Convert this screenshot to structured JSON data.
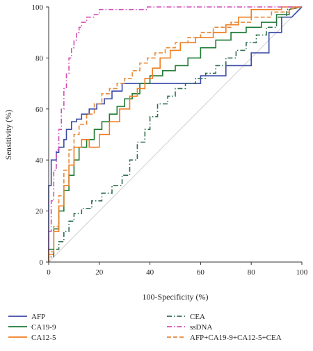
{
  "chart_data": {
    "type": "line",
    "title": "",
    "xlabel": "100-Specificity (%)",
    "ylabel": "Sensitivity (%)",
    "xlim": [
      0,
      100
    ],
    "ylim": [
      0,
      100
    ],
    "x_ticks": [
      0,
      20,
      40,
      60,
      80,
      100
    ],
    "y_ticks": [
      0,
      20,
      40,
      60,
      80,
      100
    ],
    "x_tick_labels": [
      "0",
      "20",
      "40",
      "60",
      "80",
      "100"
    ],
    "y_tick_labels": [
      "0",
      "20",
      "40",
      "60",
      "80",
      "100"
    ],
    "grid": false,
    "legend_position": "bottom",
    "reference_line": {
      "from": [
        0,
        0
      ],
      "to": [
        100,
        100
      ],
      "color": "#d0d0d0"
    },
    "series": [
      {
        "name": "AFP",
        "color": "#3b4aa8",
        "dash": "solid",
        "points": [
          [
            0,
            0
          ],
          [
            0,
            30
          ],
          [
            1,
            30
          ],
          [
            1,
            40
          ],
          [
            3,
            40
          ],
          [
            3,
            43
          ],
          [
            4,
            43
          ],
          [
            4,
            45
          ],
          [
            6,
            45
          ],
          [
            6,
            48
          ],
          [
            7,
            48
          ],
          [
            7,
            52
          ],
          [
            9,
            52
          ],
          [
            9,
            55
          ],
          [
            11,
            55
          ],
          [
            11,
            56
          ],
          [
            13,
            56
          ],
          [
            13,
            58
          ],
          [
            16,
            58
          ],
          [
            16,
            60
          ],
          [
            19,
            60
          ],
          [
            19,
            62
          ],
          [
            22,
            62
          ],
          [
            22,
            64
          ],
          [
            25,
            64
          ],
          [
            25,
            67
          ],
          [
            29,
            67
          ],
          [
            29,
            70
          ],
          [
            40,
            70
          ],
          [
            40,
            70
          ],
          [
            60,
            70
          ],
          [
            60,
            73
          ],
          [
            70,
            73
          ],
          [
            70,
            77
          ],
          [
            80,
            77
          ],
          [
            80,
            82
          ],
          [
            87,
            82
          ],
          [
            87,
            90
          ],
          [
            92,
            90
          ],
          [
            92,
            96
          ],
          [
            96,
            96
          ],
          [
            100,
            100
          ]
        ]
      },
      {
        "name": "CA19-9",
        "color": "#1e7a34",
        "dash": "solid",
        "points": [
          [
            0,
            0
          ],
          [
            0,
            5
          ],
          [
            2,
            5
          ],
          [
            2,
            13
          ],
          [
            4,
            13
          ],
          [
            4,
            20
          ],
          [
            6,
            20
          ],
          [
            6,
            28
          ],
          [
            8,
            28
          ],
          [
            8,
            34
          ],
          [
            10,
            34
          ],
          [
            10,
            40
          ],
          [
            12,
            40
          ],
          [
            12,
            45
          ],
          [
            15,
            45
          ],
          [
            15,
            48
          ],
          [
            18,
            48
          ],
          [
            18,
            52
          ],
          [
            21,
            52
          ],
          [
            21,
            55
          ],
          [
            24,
            55
          ],
          [
            24,
            58
          ],
          [
            27,
            58
          ],
          [
            27,
            61
          ],
          [
            30,
            61
          ],
          [
            30,
            64
          ],
          [
            33,
            64
          ],
          [
            33,
            66
          ],
          [
            36,
            66
          ],
          [
            36,
            70
          ],
          [
            40,
            70
          ],
          [
            40,
            73
          ],
          [
            45,
            73
          ],
          [
            45,
            75
          ],
          [
            50,
            75
          ],
          [
            50,
            77
          ],
          [
            55,
            77
          ],
          [
            55,
            80
          ],
          [
            60,
            80
          ],
          [
            60,
            84
          ],
          [
            66,
            84
          ],
          [
            66,
            87
          ],
          [
            72,
            87
          ],
          [
            72,
            90
          ],
          [
            78,
            90
          ],
          [
            78,
            92
          ],
          [
            84,
            92
          ],
          [
            84,
            94
          ],
          [
            90,
            94
          ],
          [
            90,
            97
          ],
          [
            95,
            97
          ],
          [
            95,
            99
          ],
          [
            100,
            100
          ]
        ]
      },
      {
        "name": "CA12-5",
        "color": "#f07d1f",
        "dash": "solid",
        "points": [
          [
            0,
            0
          ],
          [
            0,
            3
          ],
          [
            2,
            3
          ],
          [
            2,
            12
          ],
          [
            4,
            12
          ],
          [
            4,
            22
          ],
          [
            6,
            22
          ],
          [
            6,
            30
          ],
          [
            8,
            30
          ],
          [
            8,
            38
          ],
          [
            10,
            38
          ],
          [
            10,
            45
          ],
          [
            13,
            45
          ],
          [
            13,
            48
          ],
          [
            16,
            48
          ],
          [
            16,
            45
          ],
          [
            20,
            45
          ],
          [
            20,
            50
          ],
          [
            24,
            50
          ],
          [
            24,
            55
          ],
          [
            28,
            55
          ],
          [
            28,
            60
          ],
          [
            32,
            60
          ],
          [
            32,
            65
          ],
          [
            35,
            65
          ],
          [
            35,
            68
          ],
          [
            38,
            68
          ],
          [
            38,
            72
          ],
          [
            41,
            72
          ],
          [
            41,
            76
          ],
          [
            44,
            76
          ],
          [
            44,
            80
          ],
          [
            48,
            80
          ],
          [
            48,
            83
          ],
          [
            52,
            83
          ],
          [
            52,
            86
          ],
          [
            58,
            86
          ],
          [
            58,
            88
          ],
          [
            65,
            88
          ],
          [
            65,
            90
          ],
          [
            70,
            90
          ],
          [
            70,
            93
          ],
          [
            75,
            93
          ],
          [
            75,
            96
          ],
          [
            80,
            96
          ],
          [
            80,
            99
          ],
          [
            92,
            99
          ],
          [
            92,
            100
          ],
          [
            100,
            100
          ]
        ]
      },
      {
        "name": "CEA",
        "color": "#2f6e4f",
        "dash": "dashdot",
        "points": [
          [
            0,
            0
          ],
          [
            0,
            2
          ],
          [
            2,
            2
          ],
          [
            2,
            5
          ],
          [
            4,
            5
          ],
          [
            4,
            8
          ],
          [
            6,
            8
          ],
          [
            6,
            12
          ],
          [
            8,
            12
          ],
          [
            8,
            16
          ],
          [
            10,
            16
          ],
          [
            10,
            19
          ],
          [
            13,
            19
          ],
          [
            13,
            21
          ],
          [
            17,
            21
          ],
          [
            17,
            24
          ],
          [
            21,
            24
          ],
          [
            21,
            27
          ],
          [
            25,
            27
          ],
          [
            25,
            30
          ],
          [
            29,
            30
          ],
          [
            29,
            34
          ],
          [
            32,
            34
          ],
          [
            32,
            40
          ],
          [
            35,
            40
          ],
          [
            35,
            47
          ],
          [
            38,
            47
          ],
          [
            38,
            52
          ],
          [
            40,
            52
          ],
          [
            40,
            57
          ],
          [
            43,
            57
          ],
          [
            43,
            62
          ],
          [
            47,
            62
          ],
          [
            47,
            65
          ],
          [
            50,
            65
          ],
          [
            50,
            68
          ],
          [
            54,
            68
          ],
          [
            54,
            70
          ],
          [
            58,
            70
          ],
          [
            58,
            72
          ],
          [
            62,
            72
          ],
          [
            62,
            74
          ],
          [
            66,
            74
          ],
          [
            66,
            77
          ],
          [
            70,
            77
          ],
          [
            70,
            80
          ],
          [
            74,
            80
          ],
          [
            74,
            83
          ],
          [
            78,
            83
          ],
          [
            78,
            86
          ],
          [
            82,
            86
          ],
          [
            82,
            89
          ],
          [
            86,
            89
          ],
          [
            86,
            92
          ],
          [
            90,
            92
          ],
          [
            90,
            96
          ],
          [
            94,
            96
          ],
          [
            94,
            99
          ],
          [
            100,
            100
          ]
        ]
      },
      {
        "name": "ssDNA",
        "color": "#d24fb5",
        "dash": "dashdot",
        "points": [
          [
            0,
            0
          ],
          [
            0,
            12
          ],
          [
            1,
            12
          ],
          [
            1,
            24
          ],
          [
            2,
            24
          ],
          [
            2,
            36
          ],
          [
            3,
            36
          ],
          [
            3,
            44
          ],
          [
            4,
            44
          ],
          [
            4,
            52
          ],
          [
            5,
            52
          ],
          [
            5,
            60
          ],
          [
            6,
            60
          ],
          [
            6,
            68
          ],
          [
            7,
            68
          ],
          [
            7,
            74
          ],
          [
            8,
            74
          ],
          [
            8,
            80
          ],
          [
            9,
            80
          ],
          [
            9,
            84
          ],
          [
            10,
            84
          ],
          [
            10,
            87
          ],
          [
            11,
            87
          ],
          [
            11,
            90
          ],
          [
            12,
            90
          ],
          [
            12,
            92
          ],
          [
            13,
            92
          ],
          [
            13,
            94
          ],
          [
            15,
            94
          ],
          [
            15,
            96
          ],
          [
            18,
            96
          ],
          [
            18,
            97
          ],
          [
            20,
            97
          ],
          [
            20,
            99
          ],
          [
            39,
            99
          ],
          [
            39,
            100
          ],
          [
            100,
            100
          ]
        ]
      },
      {
        "name": "AFP+CA19-9+CA12-5+CEA",
        "color": "#e58a3a",
        "dash": "dashed",
        "points": [
          [
            0,
            0
          ],
          [
            0,
            4
          ],
          [
            2,
            4
          ],
          [
            2,
            14
          ],
          [
            4,
            14
          ],
          [
            4,
            26
          ],
          [
            6,
            26
          ],
          [
            6,
            36
          ],
          [
            8,
            36
          ],
          [
            8,
            44
          ],
          [
            10,
            44
          ],
          [
            10,
            50
          ],
          [
            12,
            50
          ],
          [
            12,
            54
          ],
          [
            15,
            54
          ],
          [
            15,
            58
          ],
          [
            18,
            58
          ],
          [
            18,
            62
          ],
          [
            21,
            62
          ],
          [
            21,
            66
          ],
          [
            24,
            66
          ],
          [
            24,
            68
          ],
          [
            27,
            68
          ],
          [
            27,
            70
          ],
          [
            30,
            70
          ],
          [
            30,
            72
          ],
          [
            33,
            72
          ],
          [
            33,
            75
          ],
          [
            36,
            75
          ],
          [
            36,
            78
          ],
          [
            39,
            78
          ],
          [
            39,
            80
          ],
          [
            42,
            80
          ],
          [
            42,
            82
          ],
          [
            46,
            82
          ],
          [
            46,
            84
          ],
          [
            50,
            84
          ],
          [
            50,
            86
          ],
          [
            55,
            86
          ],
          [
            55,
            88
          ],
          [
            60,
            88
          ],
          [
            60,
            90
          ],
          [
            65,
            90
          ],
          [
            65,
            92
          ],
          [
            72,
            92
          ],
          [
            72,
            94
          ],
          [
            80,
            94
          ],
          [
            80,
            96
          ],
          [
            88,
            96
          ],
          [
            88,
            98
          ],
          [
            95,
            98
          ],
          [
            95,
            99
          ],
          [
            100,
            100
          ]
        ]
      }
    ]
  }
}
